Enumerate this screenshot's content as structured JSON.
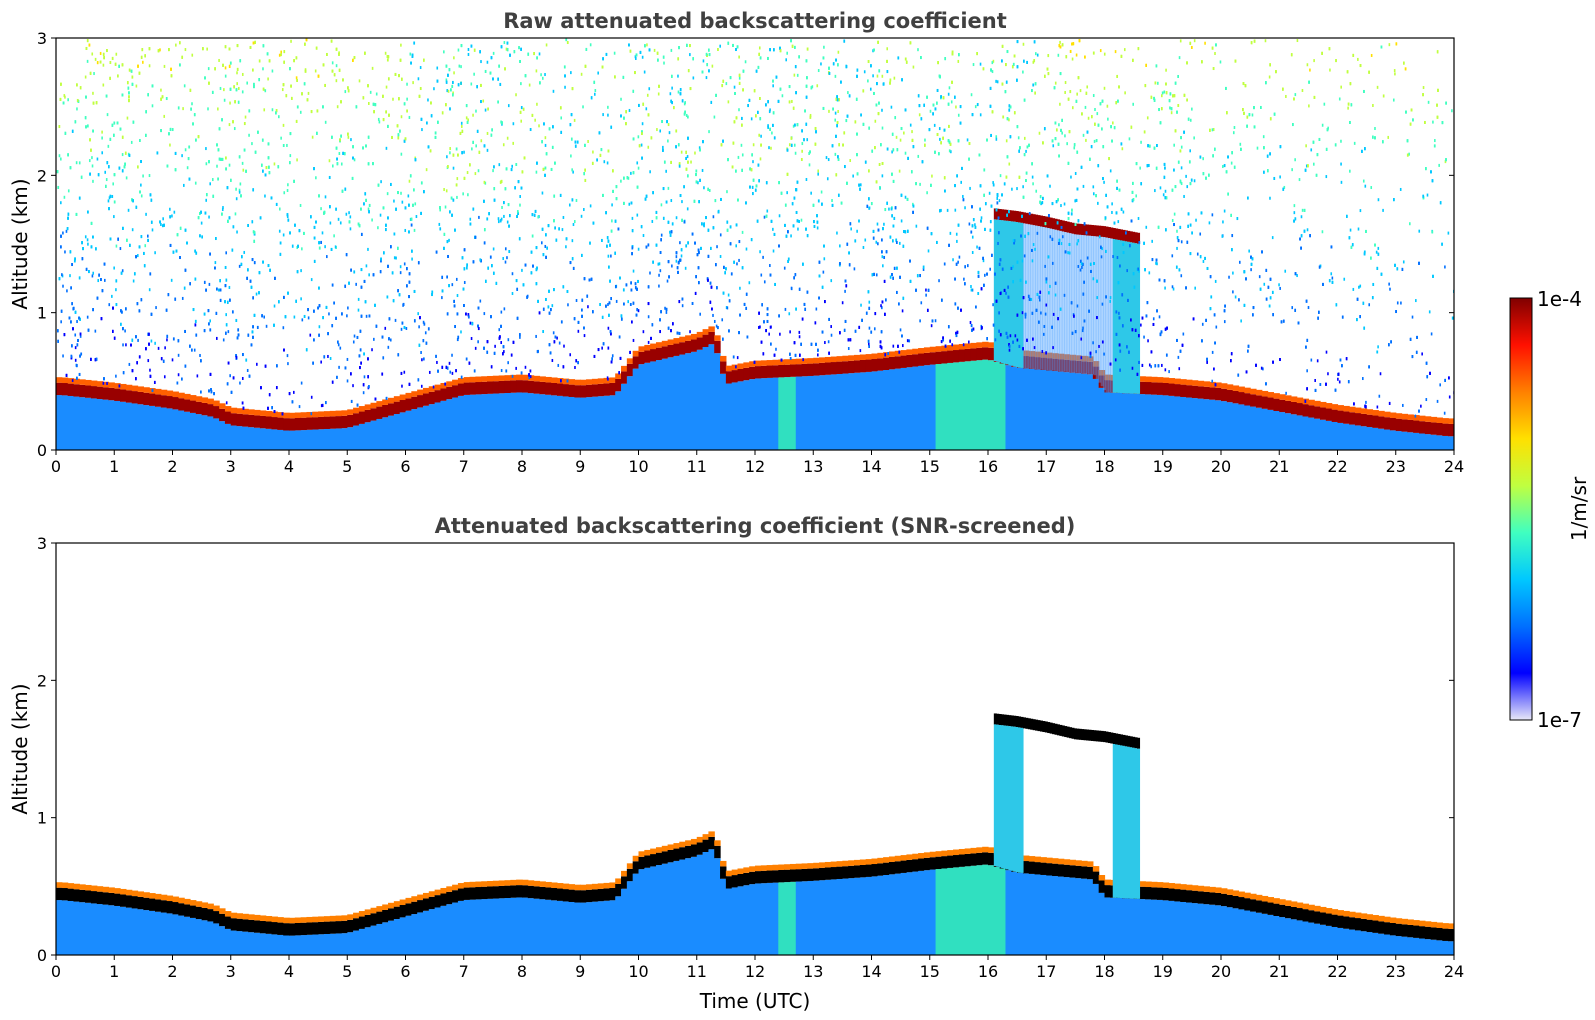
{
  "chart_data": [
    {
      "type": "heatmap",
      "title": "Raw attenuated backscattering coefficient",
      "xlabel": "",
      "ylabel": "Altitude (km)",
      "xlim": [
        0,
        24
      ],
      "ylim": [
        0,
        3
      ],
      "x_ticks": [
        "0",
        "1",
        "2",
        "3",
        "4",
        "5",
        "6",
        "7",
        "8",
        "9",
        "10",
        "11",
        "12",
        "13",
        "14",
        "15",
        "16",
        "17",
        "18",
        "19",
        "20",
        "21",
        "22",
        "23",
        "24"
      ],
      "y_ticks": [
        "0",
        "1",
        "2",
        "3"
      ],
      "grid": false,
      "noise": "strong",
      "cloud_layer": [
        {
          "x": 0.1,
          "y": 0.4
        },
        {
          "x": 1,
          "y": 0.36
        },
        {
          "x": 2,
          "y": 0.3
        },
        {
          "x": 2.7,
          "y": 0.24
        },
        {
          "x": 3,
          "y": 0.18
        },
        {
          "x": 4,
          "y": 0.14
        },
        {
          "x": 5,
          "y": 0.16
        },
        {
          "x": 6,
          "y": 0.28
        },
        {
          "x": 7,
          "y": 0.4
        },
        {
          "x": 8,
          "y": 0.42
        },
        {
          "x": 9,
          "y": 0.38
        },
        {
          "x": 9.6,
          "y": 0.4
        },
        {
          "x": 10,
          "y": 0.62
        },
        {
          "x": 11,
          "y": 0.72
        },
        {
          "x": 11.3,
          "y": 0.78
        },
        {
          "x": 11.5,
          "y": 0.48
        },
        {
          "x": 12,
          "y": 0.52
        },
        {
          "x": 13,
          "y": 0.54
        },
        {
          "x": 14,
          "y": 0.57
        },
        {
          "x": 15,
          "y": 0.62
        },
        {
          "x": 16,
          "y": 0.66
        },
        {
          "x": 16.5,
          "y": 0.6
        },
        {
          "x": 17.8,
          "y": 0.55
        },
        {
          "x": 18,
          "y": 0.42
        },
        {
          "x": 19,
          "y": 0.4
        },
        {
          "x": 20,
          "y": 0.36
        },
        {
          "x": 21,
          "y": 0.28
        },
        {
          "x": 22,
          "y": 0.2
        },
        {
          "x": 23,
          "y": 0.14
        },
        {
          "x": 23.9,
          "y": 0.1
        }
      ],
      "upper_cloud": [
        {
          "x": 16.1,
          "y": 1.68
        },
        {
          "x": 16.5,
          "y": 1.66
        },
        {
          "x": 17,
          "y": 1.62
        },
        {
          "x": 17.5,
          "y": 1.57
        },
        {
          "x": 18,
          "y": 1.55
        },
        {
          "x": 18.6,
          "y": 1.5
        }
      ]
    },
    {
      "type": "heatmap",
      "title": "Attenuated backscattering coefficient (SNR-screened)",
      "xlabel": "Time (UTC)",
      "ylabel": "Altitude (km)",
      "xlim": [
        0,
        24
      ],
      "ylim": [
        0,
        3
      ],
      "x_ticks": [
        "0",
        "1",
        "2",
        "3",
        "4",
        "5",
        "6",
        "7",
        "8",
        "9",
        "10",
        "11",
        "12",
        "13",
        "14",
        "15",
        "16",
        "17",
        "18",
        "19",
        "20",
        "21",
        "22",
        "23",
        "24"
      ],
      "y_ticks": [
        "0",
        "1",
        "2",
        "3"
      ],
      "grid": false,
      "noise": "none",
      "cloud_layer": [
        {
          "x": 0.1,
          "y": 0.4
        },
        {
          "x": 1,
          "y": 0.36
        },
        {
          "x": 2,
          "y": 0.3
        },
        {
          "x": 2.7,
          "y": 0.24
        },
        {
          "x": 3,
          "y": 0.18
        },
        {
          "x": 4,
          "y": 0.14
        },
        {
          "x": 5,
          "y": 0.16
        },
        {
          "x": 6,
          "y": 0.28
        },
        {
          "x": 7,
          "y": 0.4
        },
        {
          "x": 8,
          "y": 0.42
        },
        {
          "x": 9,
          "y": 0.38
        },
        {
          "x": 9.6,
          "y": 0.4
        },
        {
          "x": 10,
          "y": 0.62
        },
        {
          "x": 11,
          "y": 0.72
        },
        {
          "x": 11.3,
          "y": 0.78
        },
        {
          "x": 11.5,
          "y": 0.48
        },
        {
          "x": 12,
          "y": 0.52
        },
        {
          "x": 13,
          "y": 0.54
        },
        {
          "x": 14,
          "y": 0.57
        },
        {
          "x": 15,
          "y": 0.62
        },
        {
          "x": 16,
          "y": 0.66
        },
        {
          "x": 16.5,
          "y": 0.6
        },
        {
          "x": 17.8,
          "y": 0.55
        },
        {
          "x": 18,
          "y": 0.42
        },
        {
          "x": 19,
          "y": 0.4
        },
        {
          "x": 20,
          "y": 0.36
        },
        {
          "x": 21,
          "y": 0.28
        },
        {
          "x": 22,
          "y": 0.2
        },
        {
          "x": 23,
          "y": 0.14
        },
        {
          "x": 23.9,
          "y": 0.1
        }
      ],
      "upper_cloud": [
        {
          "x": 16.1,
          "y": 1.68
        },
        {
          "x": 16.5,
          "y": 1.66
        },
        {
          "x": 17,
          "y": 1.62
        },
        {
          "x": 17.5,
          "y": 1.57
        },
        {
          "x": 18,
          "y": 1.55
        },
        {
          "x": 18.6,
          "y": 1.5
        }
      ]
    }
  ],
  "colorbar": {
    "label": "1/m/sr",
    "max_label": "1e-4",
    "min_label": "1e-7",
    "colors": [
      "#e8e8f8",
      "#0000ff",
      "#0070ff",
      "#00c8ff",
      "#40ffc0",
      "#c0ff40",
      "#ffe000",
      "#ff8000",
      "#ff1000",
      "#800000"
    ],
    "scale": "log",
    "range": [
      1e-07,
      0.0001
    ]
  }
}
